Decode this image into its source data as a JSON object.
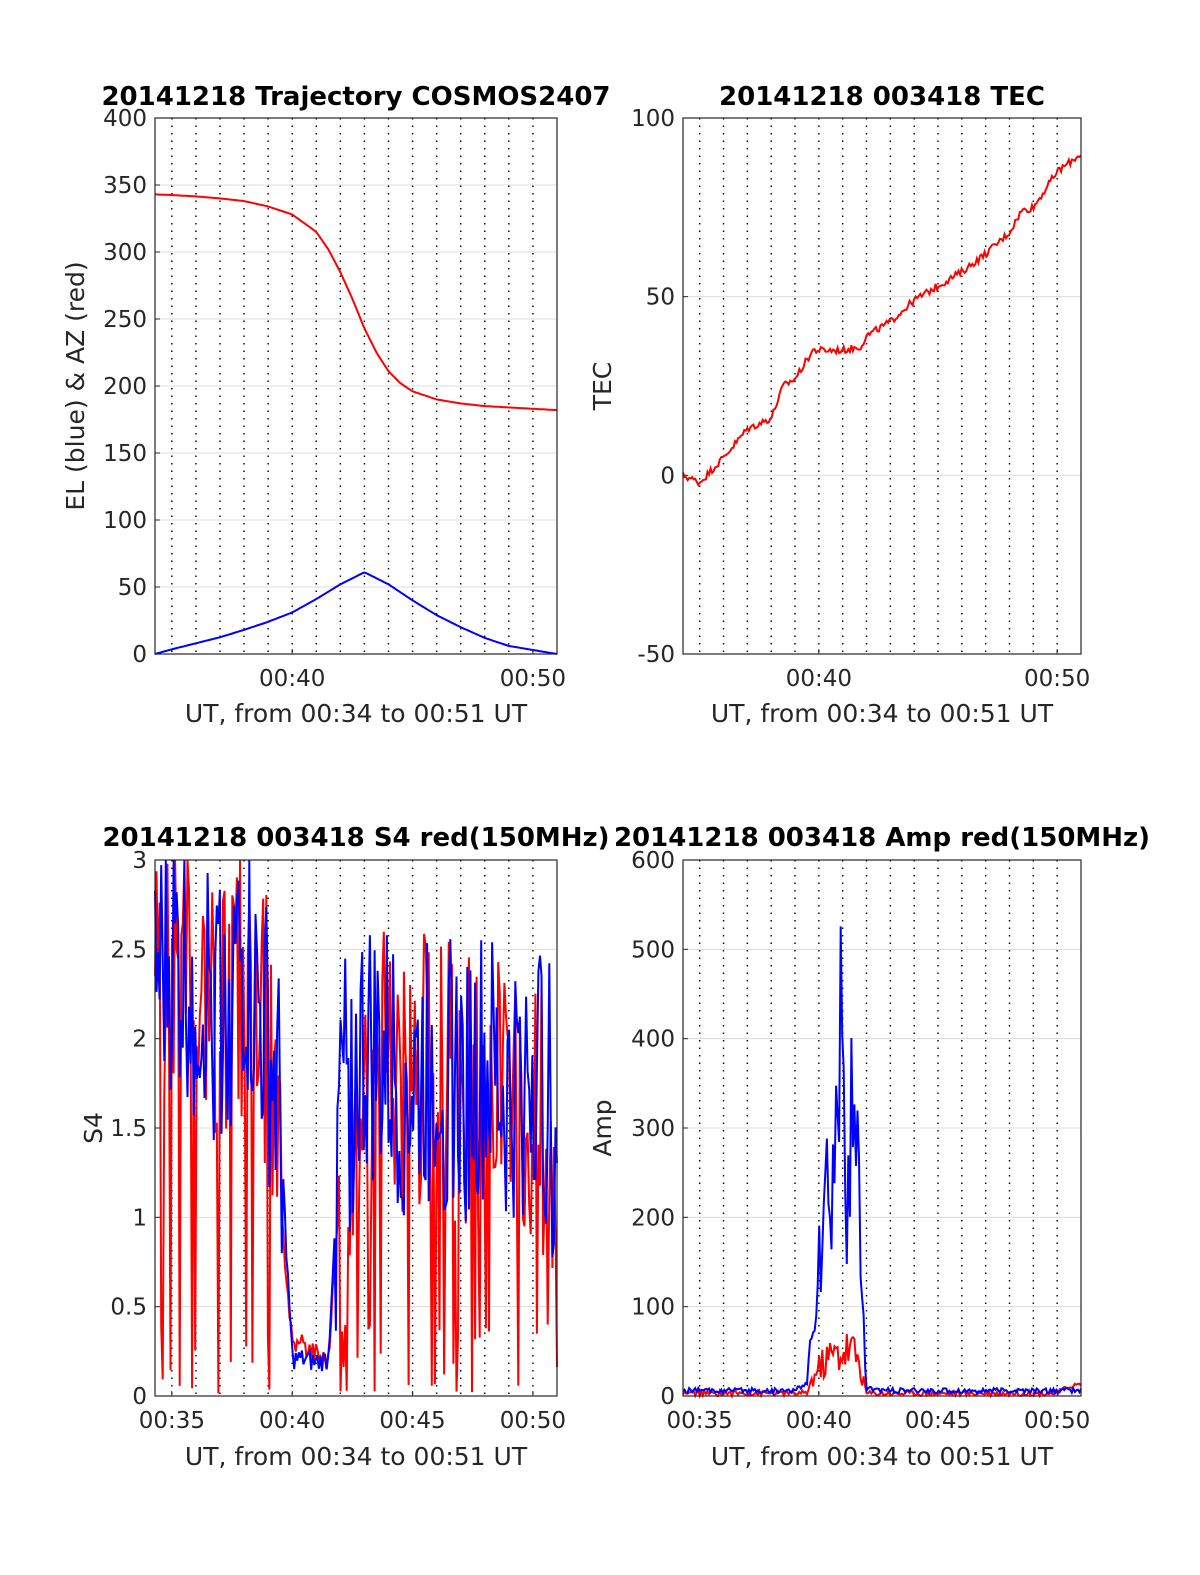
{
  "chart_data": [
    {
      "type": "line",
      "title": "20141218 Trajectory COSMOS2407",
      "xlabel": "UT, from 00:34 to 00:51 UT",
      "ylabel": "EL (blue) & AZ (red)",
      "xlim": [
        "00:34:18",
        "00:51:00"
      ],
      "ylim": [
        0,
        400
      ],
      "x_ticks": [
        "00:40",
        "00:50"
      ],
      "y_ticks": [
        "0",
        "50",
        "100",
        "150",
        "200",
        "250",
        "300",
        "350",
        "400"
      ],
      "grid": true,
      "colors": {
        "az": "#ff0000",
        "el": "#0000ff"
      },
      "series": [
        {
          "color": "#ff0000",
          "x": [
            "00:34:18",
            "00:35",
            "00:36",
            "00:37",
            "00:38",
            "00:39",
            "00:40",
            "00:41",
            "00:41:30",
            "00:42",
            "00:42:30",
            "00:43",
            "00:43:30",
            "00:44",
            "00:44:30",
            "00:45",
            "00:46",
            "00:47",
            "00:48",
            "00:49",
            "00:50",
            "00:51"
          ],
          "y": [
            343,
            342.5,
            341.5,
            340,
            338,
            334,
            328,
            315,
            302,
            285,
            265,
            243,
            225,
            211,
            202,
            196,
            190,
            187,
            185,
            184,
            183,
            182
          ]
        },
        {
          "color": "#0000ff",
          "x": [
            "00:34:18",
            "00:35",
            "00:36",
            "00:37",
            "00:38",
            "00:39",
            "00:40",
            "00:41",
            "00:42",
            "00:43",
            "00:44",
            "00:45",
            "00:46",
            "00:47",
            "00:48",
            "00:49",
            "00:50",
            "00:51"
          ],
          "y": [
            0,
            3.5,
            8,
            12.5,
            18,
            24,
            31,
            41,
            52,
            61,
            52,
            40,
            29,
            20,
            12,
            6,
            3,
            0
          ]
        }
      ]
    },
    {
      "type": "line",
      "title": "20141218 003418 TEC",
      "xlabel": "UT, from 00:34 to 00:51 UT",
      "ylabel": "TEC",
      "xlim": [
        "00:34:18",
        "00:51:00"
      ],
      "ylim": [
        -50,
        100
      ],
      "x_ticks": [
        "00:40",
        "00:50"
      ],
      "y_ticks": [
        "-50",
        "0",
        "50",
        "100"
      ],
      "grid": true,
      "colors": {
        "tec": "#ff0000"
      },
      "series": [
        {
          "color": "#ff0000",
          "x": [
            "00:34:18",
            "00:35",
            "00:36",
            "00:37",
            "00:38",
            "00:38:30",
            "00:39",
            "00:39:45",
            "00:40",
            "00:41",
            "00:41:45",
            "00:42",
            "00:43",
            "00:44",
            "00:45",
            "00:46",
            "00:47",
            "00:48",
            "00:48:30",
            "00:49",
            "00:50",
            "00:51"
          ],
          "y": [
            0,
            -2,
            5,
            13,
            16,
            25,
            27,
            35,
            35,
            35,
            36,
            39,
            43,
            49,
            53,
            57,
            62,
            68,
            74,
            75,
            85,
            90
          ]
        }
      ]
    },
    {
      "type": "line",
      "title": "20141218 003418 S4 red(150MHz)",
      "xlabel": "UT, from 00:34 to 00:51 UT",
      "ylabel": "S4",
      "xlim": [
        "00:34:18",
        "00:51:00"
      ],
      "ylim": [
        0,
        3
      ],
      "x_ticks": [
        "00:35",
        "00:40",
        "00:45",
        "00:50"
      ],
      "y_ticks": [
        "0",
        "0.5",
        "1",
        "1.5",
        "2",
        "2.5",
        "3"
      ],
      "grid": true,
      "colors": {
        "red": "#ff0000",
        "blue": "#0000ff"
      },
      "series": [
        {
          "color": "#ff0000",
          "x": [
            "00:34:18",
            "00:35",
            "00:36",
            "00:37",
            "00:38",
            "00:39",
            "00:39:30",
            "00:40",
            "00:40:30",
            "00:41",
            "00:41:30",
            "00:42",
            "00:43",
            "00:44",
            "00:45",
            "00:46",
            "00:47",
            "00:48",
            "00:49",
            "00:50",
            "00:51"
          ],
          "y": [
            2.2,
            2.5,
            2.4,
            2.1,
            2.3,
            2.0,
            1.1,
            0.3,
            0.28,
            0.25,
            0.2,
            1.2,
            1.9,
            1.8,
            1.7,
            1.9,
            1.6,
            1.8,
            1.5,
            1.7,
            1.3
          ]
        },
        {
          "color": "#0000ff",
          "x": [
            "00:34:18",
            "00:35",
            "00:36",
            "00:37",
            "00:38",
            "00:39",
            "00:39:30",
            "00:40",
            "00:40:30",
            "00:41",
            "00:41:30",
            "00:42",
            "00:43",
            "00:44",
            "00:45",
            "00:46",
            "00:47",
            "00:48",
            "00:49",
            "00:50",
            "00:51"
          ],
          "y": [
            2.3,
            2.4,
            2.3,
            2.2,
            2.4,
            1.9,
            1.5,
            0.2,
            0.2,
            0.18,
            0.2,
            1.6,
            1.9,
            1.8,
            1.7,
            1.9,
            1.7,
            1.8,
            1.6,
            1.9,
            1.5
          ]
        }
      ]
    },
    {
      "type": "line",
      "title": "20141218 003418 Amp red(150MHz)",
      "xlabel": "UT, from 00:34 to 00:51 UT",
      "ylabel": "Amp",
      "xlim": [
        "00:34:18",
        "00:51:00"
      ],
      "ylim": [
        0,
        600
      ],
      "x_ticks": [
        "00:35",
        "00:40",
        "00:45",
        "00:50"
      ],
      "y_ticks": [
        "0",
        "100",
        "200",
        "300",
        "400",
        "500",
        "600"
      ],
      "grid": true,
      "colors": {
        "red": "#ff0000",
        "blue": "#0000ff"
      },
      "series": [
        {
          "color": "#ff0000",
          "x": [
            "00:34:18",
            "00:39:30",
            "00:39:45",
            "00:40",
            "00:40:30",
            "00:41",
            "00:41:20",
            "00:41:40",
            "00:42",
            "00:50",
            "00:50:30",
            "00:51"
          ],
          "y": [
            0,
            0,
            20,
            35,
            50,
            55,
            60,
            45,
            0,
            0,
            8,
            10
          ]
        },
        {
          "color": "#0000ff",
          "x": [
            "00:34:18",
            "00:35",
            "00:36",
            "00:37",
            "00:38",
            "00:39",
            "00:39:30",
            "00:39:45",
            "00:40",
            "00:40:20",
            "00:40:40",
            "00:41",
            "00:41:10",
            "00:41:20",
            "00:41:30",
            "00:41:40",
            "00:42",
            "00:43",
            "00:44",
            "00:45",
            "00:46",
            "00:47",
            "00:48",
            "00:49",
            "00:50",
            "00:51"
          ],
          "y": [
            3,
            3,
            3,
            3,
            3,
            3,
            10,
            100,
            180,
            230,
            280,
            430,
            250,
            400,
            270,
            230,
            5,
            3,
            3,
            3,
            3,
            3,
            3,
            3,
            3,
            3
          ]
        }
      ]
    }
  ]
}
